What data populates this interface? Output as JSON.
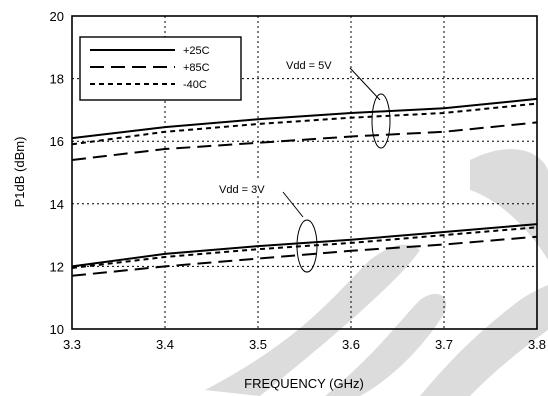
{
  "chart_data": {
    "type": "line",
    "xlabel": "FREQUENCY (GHz)",
    "ylabel": "P1dB (dBm)",
    "xlim": [
      3.3,
      3.8
    ],
    "ylim": [
      10,
      20
    ],
    "xticks": [
      "3.3",
      "3.4",
      "3.5",
      "3.6",
      "3.7",
      "3.8"
    ],
    "yticks": [
      "10",
      "12",
      "14",
      "16",
      "18",
      "20"
    ],
    "grid": "dotted",
    "legend_position": "top-left",
    "x": [
      3.3,
      3.4,
      3.5,
      3.6,
      3.7,
      3.8
    ],
    "series": [
      {
        "name": "+25C",
        "group": "Vdd = 5V",
        "style": "solid",
        "values": [
          16.1,
          16.45,
          16.7,
          16.9,
          17.05,
          17.35
        ]
      },
      {
        "name": "+85C",
        "group": "Vdd = 5V",
        "style": "dashed",
        "values": [
          15.4,
          15.75,
          15.95,
          16.15,
          16.3,
          16.6
        ]
      },
      {
        "name": "-40C",
        "group": "Vdd = 5V",
        "style": "dotted",
        "values": [
          15.9,
          16.3,
          16.55,
          16.75,
          16.9,
          17.2
        ]
      },
      {
        "name": "+25C",
        "group": "Vdd = 3V",
        "style": "solid",
        "values": [
          12.0,
          12.4,
          12.65,
          12.85,
          13.1,
          13.35
        ]
      },
      {
        "name": "+85C",
        "group": "Vdd = 3V",
        "style": "dashed",
        "values": [
          11.7,
          12.0,
          12.25,
          12.5,
          12.7,
          12.95
        ]
      },
      {
        "name": "-40C",
        "group": "Vdd = 3V",
        "style": "dotted",
        "values": [
          11.95,
          12.3,
          12.55,
          12.75,
          13.0,
          13.25
        ]
      }
    ],
    "legend": [
      {
        "label": "+25C",
        "style": "solid"
      },
      {
        "label": "+85C",
        "style": "dashed"
      },
      {
        "label": "-40C",
        "style": "dotted"
      }
    ],
    "annotations": [
      {
        "text": "Vdd = 5V",
        "x": 3.63,
        "y": 16.9
      },
      {
        "text": "Vdd = 3V",
        "x": 3.55,
        "y": 12.6
      }
    ]
  }
}
